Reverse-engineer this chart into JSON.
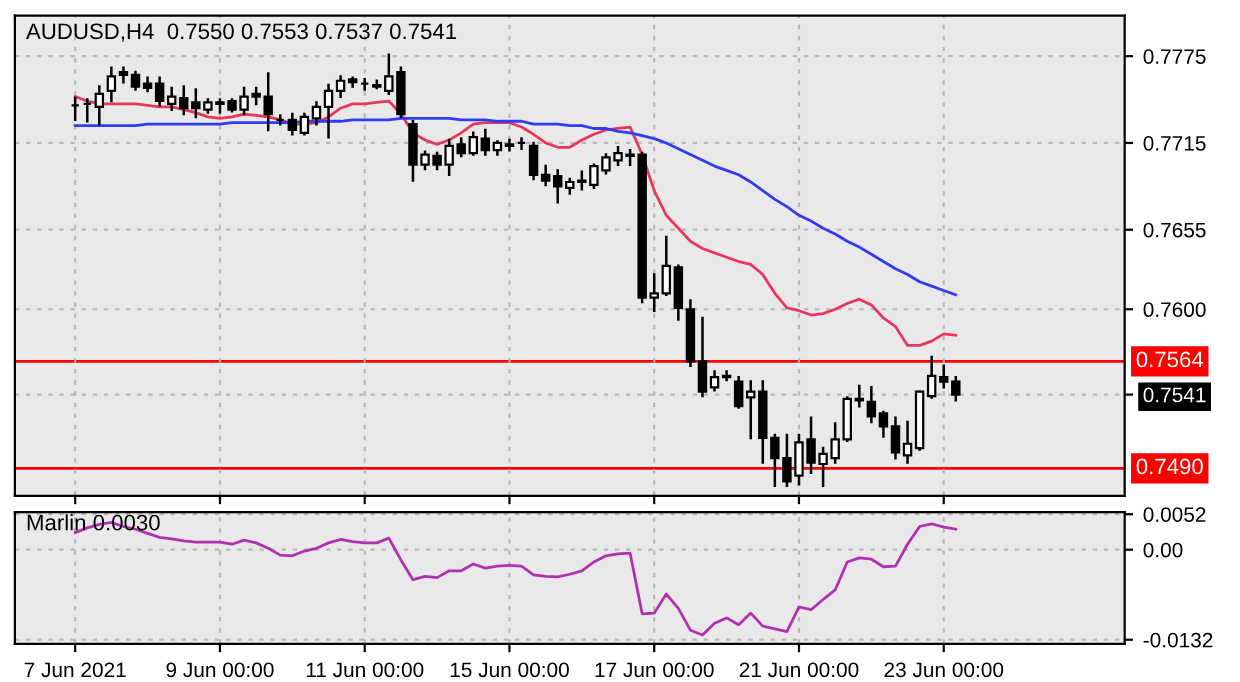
{
  "chart_data": [
    {
      "type": "candlestick",
      "title": "AUDUSD,H4  0.7550 0.7553 0.7537 0.7541",
      "categories": [
        null,
        null,
        null,
        null,
        null,
        null,
        null,
        null,
        null,
        null,
        null,
        null,
        null,
        null,
        null,
        null,
        null,
        null,
        null,
        null,
        null,
        null,
        null,
        null,
        null,
        null,
        null,
        null,
        null,
        null,
        null,
        null,
        null,
        null,
        null,
        null,
        null,
        null,
        null,
        null,
        null,
        null,
        null,
        null,
        null,
        null,
        null,
        null,
        null,
        null,
        null,
        null,
        null,
        null,
        null,
        null,
        null,
        null,
        null,
        null,
        null,
        null,
        null,
        null,
        null,
        null,
        null,
        null,
        null,
        null,
        null,
        null,
        null,
        null
      ],
      "ohlc": [
        [
          0.7741,
          0.7746,
          0.7731,
          0.7741
        ],
        [
          0.7742,
          0.7745,
          0.773,
          0.7742
        ],
        [
          0.774,
          0.7754,
          0.7728,
          0.7749
        ],
        [
          0.7751,
          0.7767,
          0.7744,
          0.7761
        ],
        [
          0.7764,
          0.7767,
          0.7757,
          0.7762
        ],
        [
          0.7762,
          0.7764,
          0.7752,
          0.7754
        ],
        [
          0.7756,
          0.776,
          0.7751,
          0.7753
        ],
        [
          0.7756,
          0.776,
          0.7741,
          0.7744
        ],
        [
          0.7742,
          0.7753,
          0.7738,
          0.7747
        ],
        [
          0.7746,
          0.7754,
          0.7735,
          0.7739
        ],
        [
          0.7743,
          0.7752,
          0.7733,
          0.7739
        ],
        [
          0.7738,
          0.7745,
          0.7736,
          0.7743
        ],
        [
          0.7742,
          0.7745,
          0.7736,
          0.7743
        ],
        [
          0.7744,
          0.7745,
          0.7737,
          0.7738
        ],
        [
          0.7738,
          0.7753,
          0.7735,
          0.7747
        ],
        [
          0.7749,
          0.7753,
          0.7742,
          0.7747
        ],
        [
          0.7747,
          0.7763,
          0.7724,
          0.7735
        ],
        [
          0.7731,
          0.7734,
          0.7728,
          0.7731
        ],
        [
          0.7731,
          0.7735,
          0.7721,
          0.7724
        ],
        [
          0.7722,
          0.7735,
          0.7721,
          0.7733
        ],
        [
          0.7732,
          0.7743,
          0.7728,
          0.774
        ],
        [
          0.774,
          0.7755,
          0.7719,
          0.7751
        ],
        [
          0.7751,
          0.7761,
          0.7747,
          0.7758
        ],
        [
          0.7759,
          0.776,
          0.7754,
          0.7757
        ],
        [
          0.7756,
          0.7759,
          0.7752,
          0.7756
        ],
        [
          0.7755,
          0.7758,
          0.7753,
          0.7754
        ],
        [
          0.7751,
          0.7776,
          0.7749,
          0.7761
        ],
        [
          0.7764,
          0.7767,
          0.7733,
          0.7735
        ],
        [
          0.7728,
          0.773,
          0.7689,
          0.77
        ],
        [
          0.77,
          0.7709,
          0.7697,
          0.7707
        ],
        [
          0.7706,
          0.7708,
          0.7697,
          0.77
        ],
        [
          0.77,
          0.7717,
          0.7693,
          0.7713
        ],
        [
          0.7714,
          0.7718,
          0.7706,
          0.7708
        ],
        [
          0.7708,
          0.7722,
          0.7707,
          0.7719
        ],
        [
          0.7718,
          0.7724,
          0.7707,
          0.771
        ],
        [
          0.771,
          0.7716,
          0.7707,
          0.7715
        ],
        [
          0.7714,
          0.7717,
          0.771,
          0.7713
        ],
        [
          0.7715,
          0.7718,
          0.7711,
          0.7715
        ],
        [
          0.7713,
          0.7715,
          0.769,
          0.7693
        ],
        [
          0.7693,
          0.7699,
          0.7686,
          0.7689
        ],
        [
          0.7692,
          0.7696,
          0.7674,
          0.7685
        ],
        [
          0.7684,
          0.769,
          0.768,
          0.7688
        ],
        [
          0.7688,
          0.7695,
          0.7683,
          0.7689
        ],
        [
          0.7686,
          0.77,
          0.7684,
          0.7699
        ],
        [
          0.7696,
          0.7707,
          0.7694,
          0.7705
        ],
        [
          0.7703,
          0.7712,
          0.77,
          0.7708
        ],
        [
          0.7707,
          0.771,
          0.77,
          0.7706
        ],
        [
          0.7707,
          0.7708,
          0.7605,
          0.7608
        ],
        [
          0.7608,
          0.7624,
          0.7599,
          0.7611
        ],
        [
          0.7611,
          0.765,
          0.761,
          0.763
        ],
        [
          0.7629,
          0.763,
          0.7593,
          0.7601
        ],
        [
          0.76,
          0.7606,
          0.7561,
          0.7564
        ],
        [
          0.7564,
          0.7594,
          0.754,
          0.7543
        ],
        [
          0.7546,
          0.7557,
          0.7544,
          0.7553
        ],
        [
          0.7554,
          0.7557,
          0.7551,
          0.7553
        ],
        [
          0.755,
          0.7553,
          0.7532,
          0.7533
        ],
        [
          0.7539,
          0.755,
          0.7511,
          0.7543
        ],
        [
          0.7543,
          0.755,
          0.7494,
          0.7511
        ],
        [
          0.7511,
          0.7513,
          0.7478,
          0.7497
        ],
        [
          0.7497,
          0.7513,
          0.7478,
          0.7481
        ],
        [
          0.7485,
          0.7513,
          0.7479,
          0.7508
        ],
        [
          0.751,
          0.7525,
          0.7487,
          0.7494
        ],
        [
          0.7493,
          0.7504,
          0.7478,
          0.75
        ],
        [
          0.7497,
          0.7521,
          0.7494,
          0.751
        ],
        [
          0.751,
          0.7539,
          0.7509,
          0.7538
        ],
        [
          0.7537,
          0.7547,
          0.7533,
          0.7538
        ],
        [
          0.7536,
          0.7546,
          0.7522,
          0.7526
        ],
        [
          0.7528,
          0.7529,
          0.7512,
          0.7519
        ],
        [
          0.7519,
          0.7525,
          0.7497,
          0.7501
        ],
        [
          0.7499,
          0.7522,
          0.7494,
          0.7507
        ],
        [
          0.7504,
          0.7543,
          0.7503,
          0.7543
        ],
        [
          0.754,
          0.7567,
          0.7539,
          0.7554
        ],
        [
          0.7553,
          0.7561,
          0.7546,
          0.755
        ],
        [
          0.755,
          0.7553,
          0.7537,
          0.7541
        ]
      ],
      "series": [
        {
          "type": "line",
          "color": "#e8365d",
          "values": [
            0.7747,
            0.7744,
            0.7742,
            0.7742,
            0.7742,
            0.7742,
            0.7741,
            0.774,
            0.774,
            0.7738,
            0.7736,
            0.7733,
            0.7732,
            0.7733,
            0.7735,
            0.7734,
            0.7733,
            0.7731,
            0.7728,
            0.7728,
            0.7729,
            0.7733,
            0.7739,
            0.7742,
            0.7742,
            0.7743,
            0.7744,
            0.7735,
            0.7722,
            0.7717,
            0.7714,
            0.7717,
            0.7722,
            0.7728,
            0.7729,
            0.7729,
            0.7729,
            0.7726,
            0.7721,
            0.7715,
            0.7712,
            0.7712,
            0.7717,
            0.7721,
            0.7724,
            0.7725,
            0.7726,
            0.7707,
            0.7682,
            0.7665,
            0.7656,
            0.7647,
            0.7642,
            0.7639,
            0.7636,
            0.7633,
            0.7631,
            0.7624,
            0.7611,
            0.7601,
            0.7599,
            0.7596,
            0.7597,
            0.76,
            0.7604,
            0.7607,
            0.7603,
            0.7594,
            0.7588,
            0.7575,
            0.7575,
            0.7578,
            0.7583,
            0.7582
          ]
        },
        {
          "type": "line",
          "color": "#2f3cf0",
          "values": [
            0.7727,
            0.7727,
            0.7727,
            0.7727,
            0.7727,
            0.7727,
            0.7728,
            0.7728,
            0.7728,
            0.7728,
            0.7728,
            0.7728,
            0.7728,
            0.7729,
            0.7729,
            0.7729,
            0.7729,
            0.7729,
            0.7729,
            0.773,
            0.773,
            0.773,
            0.773,
            0.7731,
            0.7731,
            0.7731,
            0.7731,
            0.7732,
            0.7732,
            0.7732,
            0.7732,
            0.7732,
            0.7731,
            0.7731,
            0.7731,
            0.773,
            0.773,
            0.773,
            0.7728,
            0.7728,
            0.7728,
            0.7727,
            0.7727,
            0.7725,
            0.7725,
            0.7723,
            0.7722,
            0.772,
            0.7718,
            0.7715,
            0.7711,
            0.7707,
            0.7703,
            0.7699,
            0.7696,
            0.7693,
            0.7688,
            0.7682,
            0.7676,
            0.7671,
            0.7665,
            0.7661,
            0.7656,
            0.7652,
            0.7647,
            0.7643,
            0.7638,
            0.7633,
            0.7628,
            0.7624,
            0.7619,
            0.7616,
            0.7613,
            0.761
          ]
        }
      ],
      "ylim": [
        0.7471,
        0.7803
      ],
      "yticks": [
        0.7775,
        0.7715,
        0.7655,
        {
          "value": 0.76,
          "label": "0.7600"
        },
        0.7541
      ],
      "ref_lines": [
        {
          "axis": "y",
          "value": 0.7564,
          "label": "0.7564",
          "color": "#ff0000"
        },
        {
          "axis": "y",
          "value": 0.749,
          "label": "0.7490",
          "color": "#ff0000"
        }
      ],
      "grid": true,
      "tick_labels": "y"
    },
    {
      "type": "line",
      "title": "Marlin 0.0030",
      "categories": [
        "7 Jun 2021",
        null,
        null,
        null,
        null,
        null,
        null,
        null,
        null,
        null,
        null,
        null,
        "9 Jun 00:00",
        null,
        null,
        null,
        null,
        null,
        null,
        null,
        null,
        null,
        null,
        null,
        "11 Jun 00:00",
        null,
        null,
        null,
        null,
        null,
        null,
        null,
        null,
        null,
        null,
        null,
        "15 Jun 00:00",
        null,
        null,
        null,
        null,
        null,
        null,
        null,
        null,
        null,
        null,
        null,
        "17 Jun 00:00",
        null,
        null,
        null,
        null,
        null,
        null,
        null,
        null,
        null,
        null,
        null,
        "21 Jun 00:00",
        null,
        null,
        null,
        null,
        null,
        null,
        null,
        null,
        null,
        null,
        null,
        "23 Jun 00:00",
        null
      ],
      "series": [
        {
          "color": "#b030b0",
          "values": [
            0.0025,
            0.0032,
            0.0037,
            0.004,
            0.0034,
            0.003,
            0.0024,
            0.0018,
            0.0016,
            0.0013,
            0.0011,
            0.0011,
            0.0011,
            0.0008,
            0.0014,
            0.001,
            0.0002,
            -0.0008,
            -0.0009,
            -0.0002,
            0.0002,
            0.001,
            0.0015,
            0.0012,
            0.001,
            0.001,
            0.0017,
            -0.0015,
            -0.0044,
            -0.0039,
            -0.0041,
            -0.0031,
            -0.0031,
            -0.0021,
            -0.0027,
            -0.0024,
            -0.0023,
            -0.0024,
            -0.0037,
            -0.0039,
            -0.004,
            -0.0036,
            -0.0031,
            -0.0018,
            -0.0009,
            -0.0006,
            -0.0005,
            -0.0094,
            -0.0093,
            -0.0065,
            -0.0086,
            -0.0118,
            -0.0125,
            -0.0108,
            -0.01,
            -0.011,
            -0.0093,
            -0.0112,
            -0.0116,
            -0.012,
            -0.0084,
            -0.0088,
            -0.0073,
            -0.0059,
            -0.0018,
            -0.0012,
            -0.0014,
            -0.0025,
            -0.0024,
            0.0008,
            0.0034,
            0.0038,
            0.0033,
            0.003
          ]
        }
      ],
      "ylim": [
        -0.0138,
        0.0055
      ],
      "yticks": [
        0.0052,
        {
          "value": 0,
          "label": "0.00"
        },
        -0.0132
      ],
      "grid": true
    }
  ]
}
